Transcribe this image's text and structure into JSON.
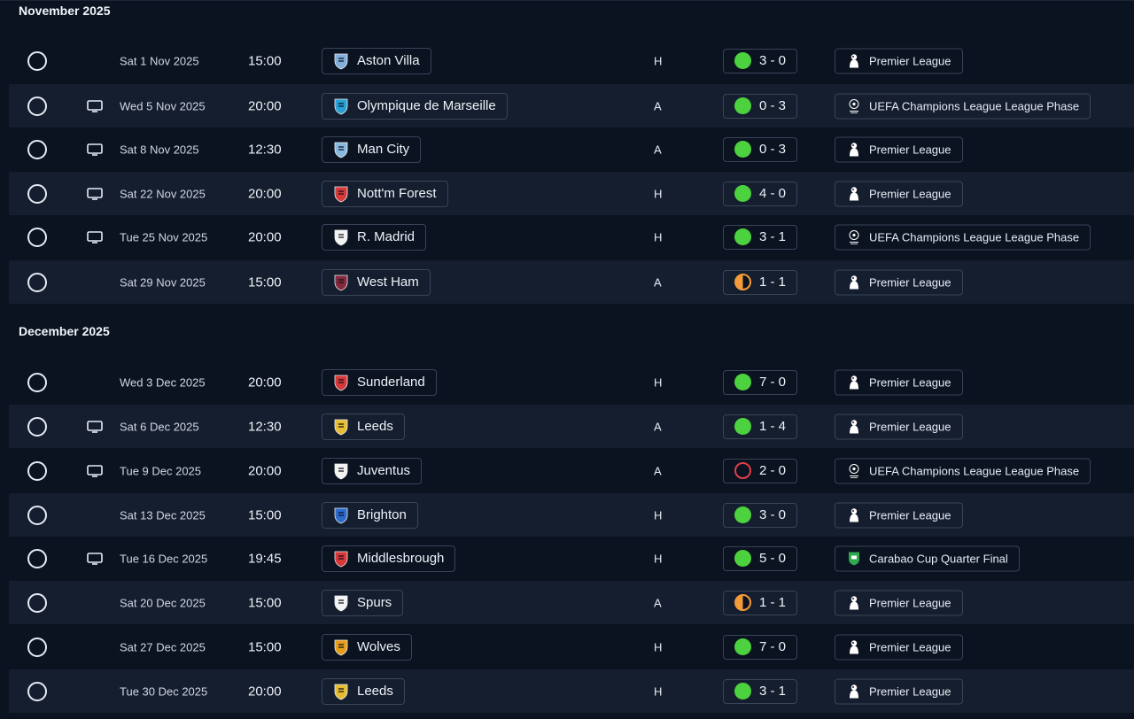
{
  "months": [
    {
      "title": "November 2025",
      "fixtures": [
        {
          "date": "Sat 1 Nov 2025",
          "time": "15:00",
          "tv": false,
          "team": "Aston Villa",
          "crest": "aston-villa-crest",
          "crest_color": "#8ab6e6",
          "venue": "H",
          "score": "3 - 0",
          "outcome": "win",
          "competition": "Premier League",
          "comp_type": "pl"
        },
        {
          "date": "Wed 5 Nov 2025",
          "time": "20:00",
          "tv": true,
          "team": "Olympique de Marseille",
          "crest": "marseille-crest",
          "crest_color": "#2aa7df",
          "venue": "A",
          "score": "0 - 3",
          "outcome": "win",
          "competition": "UEFA Champions League League Phase",
          "comp_type": "ucl"
        },
        {
          "date": "Sat 8 Nov 2025",
          "time": "12:30",
          "tv": true,
          "team": "Man City",
          "crest": "man-city-crest",
          "crest_color": "#8fc3ea",
          "venue": "A",
          "score": "0 - 3",
          "outcome": "win",
          "competition": "Premier League",
          "comp_type": "pl"
        },
        {
          "date": "Sat 22 Nov 2025",
          "time": "20:00",
          "tv": true,
          "team": "Nott'm Forest",
          "crest": "forest-crest",
          "crest_color": "#e23a3a",
          "venue": "H",
          "score": "4 - 0",
          "outcome": "win",
          "competition": "Premier League",
          "comp_type": "pl"
        },
        {
          "date": "Tue 25 Nov 2025",
          "time": "20:00",
          "tv": true,
          "team": "R. Madrid",
          "crest": "real-madrid-crest",
          "crest_color": "#ffffff",
          "venue": "H",
          "score": "3 - 1",
          "outcome": "win",
          "competition": "UEFA Champions League League Phase",
          "comp_type": "ucl"
        },
        {
          "date": "Sat 29 Nov 2025",
          "time": "15:00",
          "tv": false,
          "team": "West Ham",
          "crest": "west-ham-crest",
          "crest_color": "#8a2a3e",
          "venue": "A",
          "score": "1 - 1",
          "outcome": "draw",
          "competition": "Premier League",
          "comp_type": "pl"
        }
      ]
    },
    {
      "title": "December 2025",
      "fixtures": [
        {
          "date": "Wed 3 Dec 2025",
          "time": "20:00",
          "tv": false,
          "team": "Sunderland",
          "crest": "sunderland-crest",
          "crest_color": "#e23a3a",
          "venue": "H",
          "score": "7 - 0",
          "outcome": "win",
          "competition": "Premier League",
          "comp_type": "pl"
        },
        {
          "date": "Sat 6 Dec 2025",
          "time": "12:30",
          "tv": true,
          "team": "Leeds",
          "crest": "leeds-crest",
          "crest_color": "#f2c531",
          "venue": "A",
          "score": "1 - 4",
          "outcome": "win",
          "competition": "Premier League",
          "comp_type": "pl"
        },
        {
          "date": "Tue 9 Dec 2025",
          "time": "20:00",
          "tv": true,
          "team": "Juventus",
          "crest": "juventus-crest",
          "crest_color": "#ffffff",
          "venue": "A",
          "score": "2 - 0",
          "outcome": "loss",
          "competition": "UEFA Champions League League Phase",
          "comp_type": "ucl"
        },
        {
          "date": "Sat 13 Dec 2025",
          "time": "15:00",
          "tv": false,
          "team": "Brighton",
          "crest": "brighton-crest",
          "crest_color": "#2f6fd6",
          "venue": "H",
          "score": "3 - 0",
          "outcome": "win",
          "competition": "Premier League",
          "comp_type": "pl"
        },
        {
          "date": "Tue 16 Dec 2025",
          "time": "19:45",
          "tv": true,
          "team": "Middlesbrough",
          "crest": "middlesbrough-crest",
          "crest_color": "#e23a3a",
          "venue": "H",
          "score": "5 - 0",
          "outcome": "win",
          "competition": "Carabao Cup Quarter Final",
          "comp_type": "carabao"
        },
        {
          "date": "Sat 20 Dec 2025",
          "time": "15:00",
          "tv": false,
          "team": "Spurs",
          "crest": "spurs-crest",
          "crest_color": "#ffffff",
          "venue": "A",
          "score": "1 - 1",
          "outcome": "draw",
          "competition": "Premier League",
          "comp_type": "pl"
        },
        {
          "date": "Sat 27 Dec 2025",
          "time": "15:00",
          "tv": false,
          "team": "Wolves",
          "crest": "wolves-crest",
          "crest_color": "#f2a51a",
          "venue": "H",
          "score": "7 - 0",
          "outcome": "win",
          "competition": "Premier League",
          "comp_type": "pl"
        },
        {
          "date": "Tue 30 Dec 2025",
          "time": "20:00",
          "tv": false,
          "team": "Leeds",
          "crest": "leeds-crest",
          "crest_color": "#f2c531",
          "venue": "H",
          "score": "3 - 1",
          "outcome": "win",
          "competition": "Premier League",
          "comp_type": "pl"
        }
      ]
    }
  ],
  "colors": {
    "win": "#4cd13f",
    "draw": "#f39a3a",
    "loss": "#e1404a",
    "row_alt": "#151e2e",
    "background": "#0b1220"
  },
  "icons": {
    "tv": "tv-icon",
    "pl": "premier-league-icon",
    "ucl": "champions-league-icon",
    "carabao": "carabao-cup-icon"
  }
}
